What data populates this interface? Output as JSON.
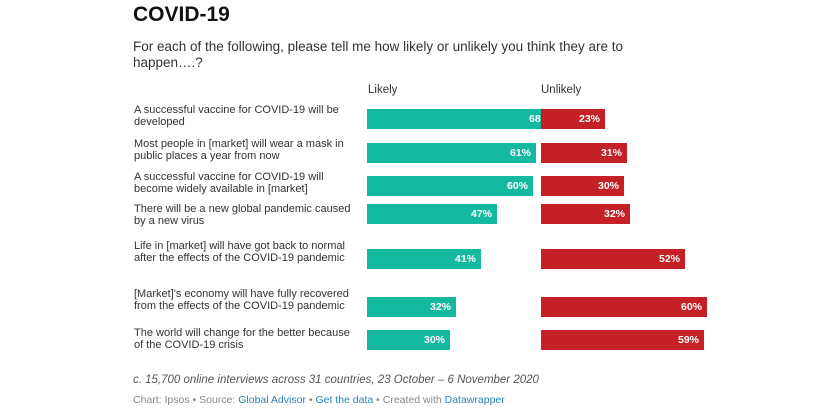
{
  "chart_data": {
    "type": "bar",
    "title": "COVID-19",
    "subtitle": "For each of the following, please tell me how likely or unlikely you think they are to happen….?",
    "categories": [
      "A successful vaccine for COVID-19 will be developed",
      "Most people in [market] will wear a mask in public places a year from now",
      "A successful vaccine for COVID-19 will become widely available in [market]",
      "There will be a new global pandemic caused by a new virus",
      "Life in [market] will have got back to normal after the effects of the COVID-19 pandemic",
      "[Market]'s economy will have fully recovered from the effects of the COVID-19 pandemic",
      "The world will change for the better because of the COVID-19 crisis"
    ],
    "series": [
      {
        "name": "Likely",
        "color": "#15b9a0",
        "values": [
          68,
          61,
          60,
          47,
          41,
          32,
          30
        ],
        "labels": [
          "68%",
          "61%",
          "60%",
          "47%",
          "41%",
          "32%",
          "30%"
        ]
      },
      {
        "name": "Unlikely",
        "color": "#c42025",
        "values": [
          23,
          31,
          30,
          32,
          52,
          60,
          59
        ],
        "labels": [
          "23%",
          "31%",
          "30%",
          "32%",
          "52%",
          "60%",
          "59%"
        ]
      }
    ],
    "xlim": [
      0,
      100
    ]
  },
  "notes": "c. 15,700 online interviews across 31 countries, 23 October – 6 November 2020",
  "footer": {
    "prefix": "Chart: Ipsos • Source: ",
    "source_link": "Global Advisor",
    "sep1": " • ",
    "data_link": "Get the data",
    "sep2": " • Created with ",
    "tool_link": "Datawrapper"
  }
}
